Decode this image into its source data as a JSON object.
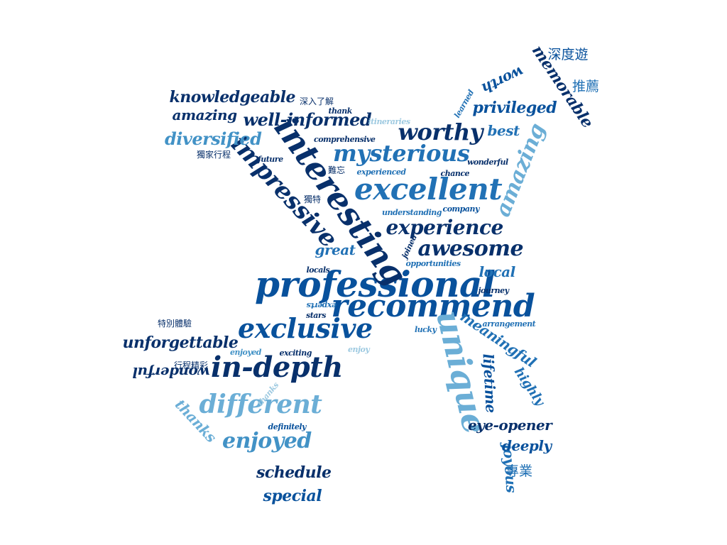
{
  "colors": {
    "navy": "#08306b",
    "royal": "#08519c",
    "mid": "#2171b5",
    "steel": "#4292c6",
    "sky": "#6baed6",
    "pale": "#9ecae1"
  },
  "words": [
    {
      "text": "professional",
      "color": "royal"
    },
    {
      "text": "recommend",
      "color": "royal"
    },
    {
      "text": "interesting",
      "color": "navy"
    },
    {
      "text": "excellent",
      "color": "mid"
    },
    {
      "text": "unique",
      "color": "sky"
    },
    {
      "text": "exclusive",
      "color": "royal"
    },
    {
      "text": "in-depth",
      "color": "navy"
    },
    {
      "text": "impressive",
      "color": "navy"
    },
    {
      "text": "mysterious",
      "color": "mid"
    },
    {
      "text": "worthy",
      "color": "navy"
    },
    {
      "text": "awesome",
      "color": "navy"
    },
    {
      "text": "experience",
      "color": "navy"
    },
    {
      "text": "different",
      "color": "sky"
    },
    {
      "text": "enjoyed",
      "color": "steel"
    },
    {
      "text": "amazing",
      "color": "sky"
    },
    {
      "text": "well-informed",
      "color": "navy"
    },
    {
      "text": "knowledgeable",
      "color": "navy"
    },
    {
      "text": "diversified",
      "color": "steel"
    },
    {
      "text": "memorable",
      "color": "navy"
    },
    {
      "text": "privileged",
      "color": "royal"
    },
    {
      "text": "unforgettable",
      "color": "navy"
    },
    {
      "text": "meaningful",
      "color": "mid"
    },
    {
      "text": "lifetime",
      "color": "royal"
    },
    {
      "text": "eye-opener",
      "color": "navy"
    },
    {
      "text": "joyous",
      "color": "mid"
    },
    {
      "text": "deeply",
      "color": "royal"
    },
    {
      "text": "schedule",
      "color": "navy"
    },
    {
      "text": "special",
      "color": "royal"
    },
    {
      "text": "thanks",
      "color": "sky"
    },
    {
      "text": "wonderful",
      "color": "navy"
    },
    {
      "text": "amazing",
      "color": "navy"
    },
    {
      "text": "best",
      "color": "mid"
    },
    {
      "text": "worth",
      "color": "royal"
    },
    {
      "text": "local",
      "color": "mid"
    },
    {
      "text": "great",
      "color": "mid"
    },
    {
      "text": "highly",
      "color": "mid"
    },
    {
      "text": "深度遊",
      "color": "royal"
    },
    {
      "text": "推薦",
      "color": "mid"
    },
    {
      "text": "專業",
      "color": "mid"
    },
    {
      "text": "深入了解",
      "color": "navy"
    },
    {
      "text": "獨家行程",
      "color": "navy"
    },
    {
      "text": "難忘",
      "color": "navy"
    },
    {
      "text": "獨特",
      "color": "navy"
    },
    {
      "text": "特別體驗",
      "color": "navy"
    },
    {
      "text": "行程精彩",
      "color": "navy"
    },
    {
      "text": "thank",
      "color": "navy"
    },
    {
      "text": "learned",
      "color": "mid"
    },
    {
      "text": "itineraries",
      "color": "pale"
    },
    {
      "text": "comprehensive",
      "color": "navy"
    },
    {
      "text": "future",
      "color": "navy"
    },
    {
      "text": "wonderful",
      "color": "navy"
    },
    {
      "text": "experienced",
      "color": "mid"
    },
    {
      "text": "chance",
      "color": "navy"
    },
    {
      "text": "understanding",
      "color": "mid"
    },
    {
      "text": "company",
      "color": "royal"
    },
    {
      "text": "joined",
      "color": "navy"
    },
    {
      "text": "opportunities",
      "color": "mid"
    },
    {
      "text": "locals",
      "color": "navy"
    },
    {
      "text": "journey",
      "color": "navy"
    },
    {
      "text": "experts",
      "color": "mid"
    },
    {
      "text": "stars",
      "color": "navy"
    },
    {
      "text": "lucky",
      "color": "mid"
    },
    {
      "text": "arrangement",
      "color": "mid"
    },
    {
      "text": "enjoyed",
      "color": "steel"
    },
    {
      "text": "exciting",
      "color": "navy"
    },
    {
      "text": "enjoy",
      "color": "pale"
    },
    {
      "text": "thanks",
      "color": "pale"
    },
    {
      "text": "definitely",
      "color": "royal"
    }
  ]
}
